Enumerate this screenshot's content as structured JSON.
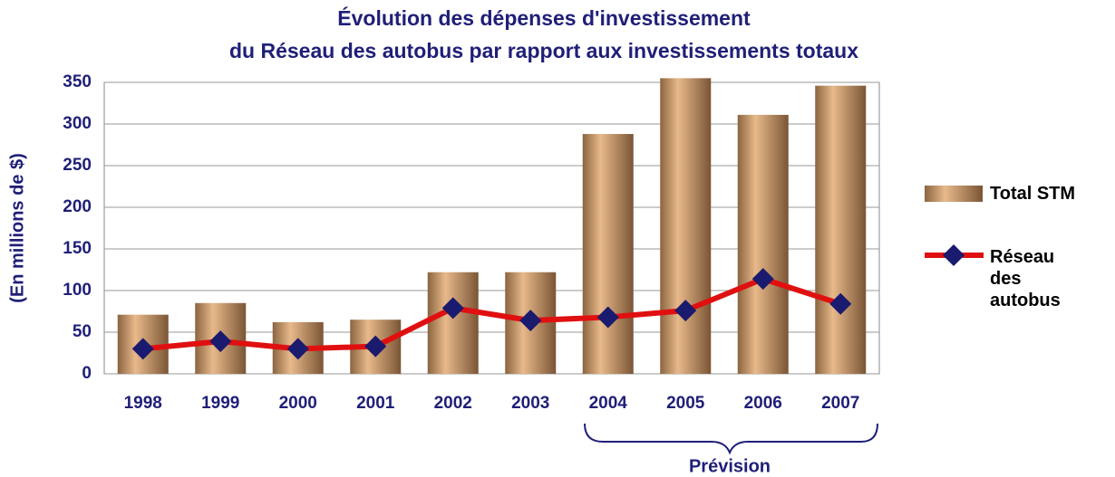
{
  "chart_data": {
    "type": "bar",
    "title": [
      "Évolution des dépenses d'investissement",
      "du Réseau des autobus par rapport aux investissements totaux"
    ],
    "y_label": "(En millions de $)",
    "annotation": "Prévision",
    "categories": [
      "1998",
      "1999",
      "2000",
      "2001",
      "2002",
      "2003",
      "2004",
      "2005",
      "2006",
      "2007"
    ],
    "series": [
      {
        "name": "Total STM",
        "type": "bar",
        "color": "#e8b98a",
        "values": [
          71,
          85,
          62,
          65,
          122,
          122,
          288,
          355,
          311,
          346
        ]
      },
      {
        "name": "Réseau des autobus",
        "type": "line",
        "color": "#e01010",
        "marker_color": "#1a1a6e",
        "values": [
          30,
          39,
          30,
          33,
          79,
          64,
          68,
          76,
          114,
          84
        ]
      }
    ],
    "ylim": [
      0,
      350
    ],
    "yticks": [
      0,
      50,
      100,
      150,
      200,
      250,
      300,
      350
    ],
    "grid": true
  }
}
